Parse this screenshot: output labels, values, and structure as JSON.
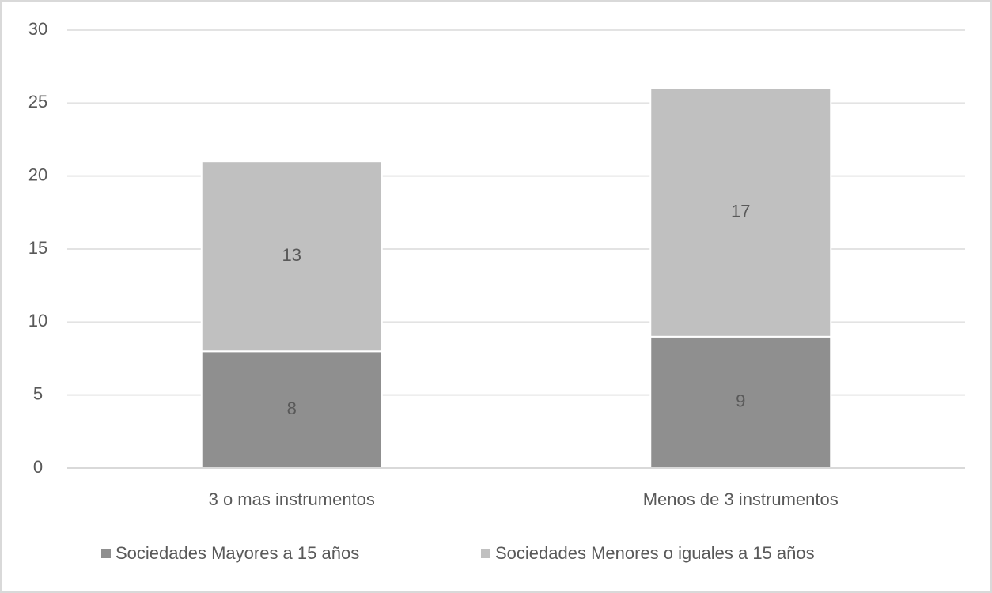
{
  "chart_data": {
    "type": "stacked_bar",
    "categories": [
      "3 o mas instrumentos",
      "Menos de 3 instrumentos"
    ],
    "series": [
      {
        "name": "Sociedades Mayores a 15 años",
        "color": "#8f8f8f",
        "values": [
          8,
          9
        ]
      },
      {
        "name": "Sociedades Menores o iguales a 15 años",
        "color": "#c0c0c0",
        "values": [
          13,
          17
        ]
      }
    ],
    "ylim": [
      0,
      30
    ],
    "yticks": [
      0,
      5,
      10,
      15,
      20,
      25,
      30
    ],
    "grid": true,
    "legend": "bottom"
  }
}
